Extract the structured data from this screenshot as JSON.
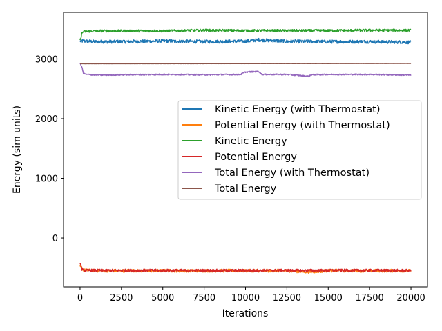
{
  "chart_data": {
    "type": "line",
    "title": "",
    "xlabel": "Iterations",
    "ylabel": "Energy (sim units)",
    "xlim": [
      -1000,
      21000
    ],
    "ylim": [
      -820,
      3780
    ],
    "xticks": [
      0,
      2500,
      5000,
      7500,
      10000,
      12500,
      15000,
      17500,
      20000
    ],
    "xtick_labels": [
      "0",
      "2500",
      "5000",
      "7500",
      "10000",
      "12500",
      "15000",
      "17500",
      "20000"
    ],
    "yticks": [
      0,
      1000,
      2000,
      3000
    ],
    "ytick_labels": [
      "0",
      "1000",
      "2000",
      "3000"
    ],
    "grid": false,
    "legend_position": "center-right",
    "series": [
      {
        "name": "Kinetic Energy (with Thermostat)",
        "color": "#1f77b4",
        "x": [
          0,
          200,
          1000,
          2500,
          5000,
          7500,
          10000,
          10800,
          12500,
          15000,
          17500,
          20000
        ],
        "y": [
          3300,
          3300,
          3290,
          3290,
          3300,
          3290,
          3295,
          3320,
          3295,
          3290,
          3290,
          3280
        ],
        "noise": 28
      },
      {
        "name": "Potential Energy (with Thermostat)",
        "color": "#ff7f0e",
        "x": [
          0,
          100,
          200,
          1000,
          2500,
          5000,
          7500,
          10000,
          12500,
          13800,
          15000,
          17500,
          20000
        ],
        "y": [
          -480,
          -500,
          -540,
          -550,
          -550,
          -550,
          -550,
          -550,
          -550,
          -570,
          -550,
          -550,
          -550
        ],
        "noise": 25
      },
      {
        "name": "Kinetic Energy",
        "color": "#2ca02c",
        "x": [
          0,
          100,
          200,
          1000,
          2500,
          5000,
          7500,
          10000,
          12500,
          15000,
          17500,
          20000
        ],
        "y": [
          3300,
          3420,
          3460,
          3470,
          3470,
          3470,
          3480,
          3475,
          3475,
          3475,
          3480,
          3480
        ],
        "noise": 20
      },
      {
        "name": "Potential Energy",
        "color": "#d62728",
        "x": [
          0,
          100,
          200,
          1000,
          2500,
          5000,
          7500,
          10000,
          12500,
          15000,
          17500,
          20000
        ],
        "y": [
          -400,
          -520,
          -545,
          -545,
          -545,
          -545,
          -545,
          -545,
          -545,
          -545,
          -545,
          -545
        ],
        "noise": 22
      },
      {
        "name": "Total Energy (with Thermostat)",
        "color": "#9467bd",
        "x": [
          0,
          100,
          200,
          400,
          1000,
          2500,
          5000,
          7500,
          9700,
          10000,
          10800,
          11000,
          12500,
          13800,
          14000,
          15000,
          17500,
          20000
        ],
        "y": [
          2920,
          2880,
          2760,
          2740,
          2730,
          2735,
          2740,
          2735,
          2740,
          2780,
          2790,
          2740,
          2740,
          2710,
          2735,
          2740,
          2740,
          2730
        ],
        "noise": 10
      },
      {
        "name": "Total Energy",
        "color": "#8c564b",
        "x": [
          0,
          5000,
          10000,
          15000,
          20000
        ],
        "y": [
          2920,
          2921,
          2922,
          2923,
          2925
        ],
        "noise": 1
      }
    ]
  }
}
